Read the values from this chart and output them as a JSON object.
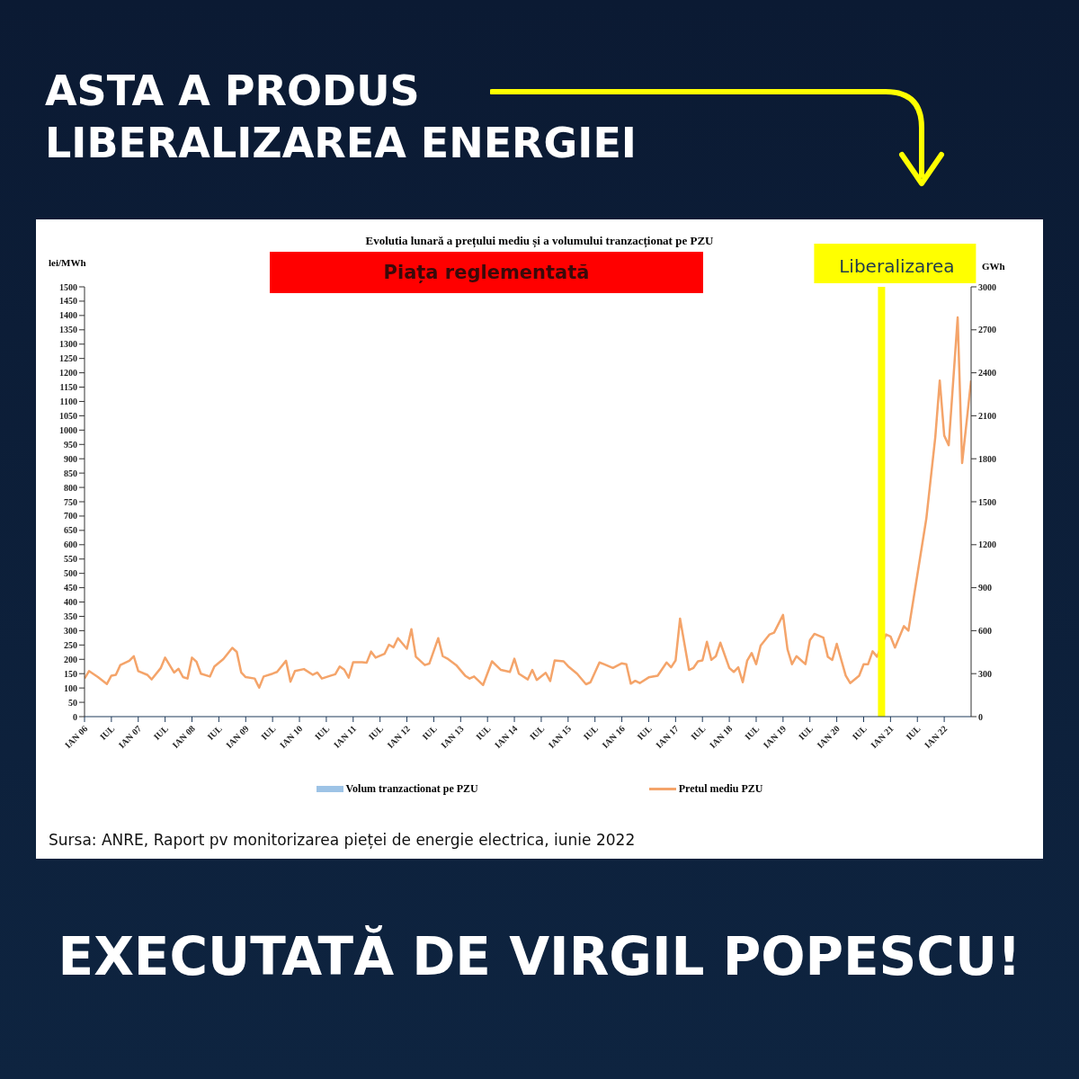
{
  "chart_data": {
    "type": "line",
    "title": "Evolutia lunară a prețului mediu și a volumului tranzacționat pe PZU",
    "ylabel": "lei/MWh",
    "y2label": "GWh",
    "annotations": [
      "ASTA A PRODUS LIBERALIZAREA ENERGIEI",
      "Piața reglementată",
      "Sursa: ANRE, Raport pv monitorizarea pieței de energie electrica, iunie 2022",
      "EXECUTATĂ DE VIRGIL POPESCU!"
    ],
    "x": [
      "2006-01",
      "2006-02",
      "2006-04",
      "2006-06",
      "2006-07",
      "2006-08",
      "2006-09",
      "2006-11",
      "2006-12",
      "2007-01",
      "2007-03",
      "2007-04",
      "2007-06",
      "2007-07",
      "2007-09",
      "2007-10",
      "2007-11",
      "2007-12",
      "2008-01",
      "2008-02",
      "2008-03",
      "2008-05",
      "2008-06",
      "2008-08",
      "2008-10",
      "2008-11",
      "2008-12",
      "2009-01",
      "2009-03",
      "2009-04",
      "2009-05",
      "2009-07",
      "2009-08",
      "2009-10",
      "2009-11",
      "2009-12",
      "2010-02",
      "2010-04",
      "2010-05",
      "2010-06",
      "2010-08",
      "2010-09",
      "2010-10",
      "2010-11",
      "2010-12",
      "2011-01",
      "2011-03",
      "2011-04",
      "2011-05",
      "2011-06",
      "2011-08",
      "2011-09",
      "2011-10",
      "2011-11",
      "2012-01",
      "2012-02",
      "2012-03",
      "2012-05",
      "2012-06",
      "2012-08",
      "2012-09",
      "2012-10",
      "2012-12",
      "2013-02",
      "2013-03",
      "2013-04",
      "2013-06",
      "2013-08",
      "2013-10",
      "2013-12",
      "2014-01",
      "2014-02",
      "2014-04",
      "2014-05",
      "2014-06",
      "2014-08",
      "2014-09",
      "2014-10",
      "2014-12",
      "2015-01",
      "2015-03",
      "2015-05",
      "2015-06",
      "2015-08",
      "2015-09",
      "2015-11",
      "2016-01",
      "2016-02",
      "2016-03",
      "2016-04",
      "2016-05",
      "2016-07",
      "2016-09",
      "2016-11",
      "2016-12",
      "2017-01",
      "2017-02",
      "2017-04",
      "2017-05",
      "2017-06",
      "2017-07",
      "2017-08",
      "2017-09",
      "2017-10",
      "2017-11",
      "2018-01",
      "2018-02",
      "2018-03",
      "2018-04",
      "2018-05",
      "2018-06",
      "2018-07",
      "2018-08",
      "2018-10",
      "2018-11",
      "2019-01",
      "2019-02",
      "2019-03",
      "2019-04",
      "2019-06",
      "2019-07",
      "2019-08",
      "2019-10",
      "2019-11",
      "2019-12",
      "2020-01",
      "2020-03",
      "2020-04",
      "2020-06",
      "2020-07",
      "2020-08",
      "2020-09",
      "2020-10",
      "2020-12",
      "2021-01",
      "2021-02",
      "2021-04",
      "2021-05",
      "2021-07",
      "2021-09",
      "2021-11",
      "2021-12",
      "2022-01",
      "2022-02",
      "2022-04",
      "2022-05",
      "2022-07"
    ],
    "series": [
      {
        "name": "Volum tranzactionat pe PZU",
        "type": "bar",
        "axis": "y2",
        "color": "#9dc3e6",
        "values": [
          null,
          null,
          null,
          null,
          null,
          null,
          null,
          null,
          null,
          null,
          null,
          null,
          null,
          null,
          null,
          null,
          null,
          null,
          null,
          null,
          null,
          null,
          null,
          null,
          null,
          null,
          null,
          null,
          null,
          null,
          null,
          null,
          null,
          null,
          null,
          null,
          null,
          null,
          null,
          null,
          null,
          null,
          null,
          null,
          null,
          null,
          null,
          null,
          null,
          null,
          null,
          null,
          null,
          null,
          null,
          null,
          null,
          null,
          null,
          null,
          null,
          null,
          null,
          null,
          null,
          null,
          null,
          null,
          null,
          null,
          null,
          null,
          null,
          null,
          null,
          null,
          null,
          null,
          null,
          null,
          null,
          null,
          null,
          null,
          null,
          null,
          null,
          null,
          null,
          null,
          null,
          null,
          null,
          null,
          null,
          null,
          null,
          null,
          null,
          null,
          null,
          null,
          null,
          null,
          null,
          null,
          null,
          null,
          null,
          null,
          null,
          null,
          null,
          null,
          null,
          null,
          null,
          null,
          null,
          null,
          null,
          null,
          null,
          null,
          null,
          null,
          null,
          null,
          null,
          null,
          null,
          null,
          null,
          null,
          null,
          null,
          null,
          null,
          null,
          null,
          null,
          null,
          null,
          null,
          null,
          null,
          null
        ]
      },
      {
        "name": "Pretul mediu PZU",
        "axis": "y",
        "color": "#f4a46a",
        "values": [
          133,
          159,
          138,
          114,
          143,
          146,
          180,
          195,
          211,
          159,
          146,
          130,
          169,
          206,
          154,
          167,
          138,
          133,
          206,
          192,
          150,
          140,
          175,
          201,
          240,
          226,
          154,
          138,
          133,
          101,
          140,
          150,
          156,
          195,
          122,
          159,
          166,
          146,
          154,
          133,
          143,
          148,
          175,
          164,
          136,
          190,
          190,
          188,
          227,
          206,
          219,
          251,
          242,
          274,
          237,
          305,
          209,
          180,
          185,
          274,
          211,
          203,
          180,
          143,
          133,
          140,
          110,
          193,
          163,
          156,
          202,
          150,
          130,
          163,
          128,
          153,
          124,
          196,
          193,
          176,
          150,
          113,
          120,
          189,
          183,
          170,
          186,
          183,
          115,
          125,
          117,
          137,
          143,
          189,
          172,
          196,
          342,
          163,
          170,
          193,
          196,
          261,
          198,
          211,
          258,
          170,
          156,
          172,
          120,
          196,
          222,
          183,
          248,
          287,
          293,
          355,
          235,
          183,
          211,
          183,
          267,
          289,
          276,
          209,
          198,
          254,
          143,
          117,
          143,
          183,
          183,
          228,
          209,
          287,
          280,
          241,
          316,
          300,
          495,
          691,
          975,
          1173,
          981,
          947,
          1393,
          885,
          1173
        ]
      }
    ],
    "xlim": [
      "2006-01",
      "2022-07"
    ],
    "xticks": [
      {
        "value": "2006-01",
        "label": "IAN 06"
      },
      {
        "value": "2006-07",
        "label": "IUL"
      },
      {
        "value": "2007-01",
        "label": "IAN 07"
      },
      {
        "value": "2007-07",
        "label": "IUL"
      },
      {
        "value": "2008-01",
        "label": "IAN 08"
      },
      {
        "value": "2008-07",
        "label": "IUL"
      },
      {
        "value": "2009-01",
        "label": "IAN 09"
      },
      {
        "value": "2009-07",
        "label": "IUL"
      },
      {
        "value": "2010-01",
        "label": "IAN 10"
      },
      {
        "value": "2010-07",
        "label": "IUL"
      },
      {
        "value": "2011-01",
        "label": "IAN 11"
      },
      {
        "value": "2011-07",
        "label": "IUL"
      },
      {
        "value": "2012-01",
        "label": "IAN 12"
      },
      {
        "value": "2012-07",
        "label": "IUL"
      },
      {
        "value": "2013-01",
        "label": "IAN 13"
      },
      {
        "value": "2013-07",
        "label": "IUL"
      },
      {
        "value": "2014-01",
        "label": "IAN 14"
      },
      {
        "value": "2014-07",
        "label": "IUL"
      },
      {
        "value": "2015-01",
        "label": "IAN 15"
      },
      {
        "value": "2015-07",
        "label": "IUL"
      },
      {
        "value": "2016-01",
        "label": "IAN 16"
      },
      {
        "value": "2016-07",
        "label": "IUL"
      },
      {
        "value": "2017-01",
        "label": "IAN 17"
      },
      {
        "value": "2017-07",
        "label": "IUL"
      },
      {
        "value": "2018-01",
        "label": "IAN 18"
      },
      {
        "value": "2018-07",
        "label": "IUL"
      },
      {
        "value": "2019-01",
        "label": "IAN 19"
      },
      {
        "value": "2019-07",
        "label": "IUL"
      },
      {
        "value": "2020-01",
        "label": "IAN 20"
      },
      {
        "value": "2020-07",
        "label": "IUL"
      },
      {
        "value": "2021-01",
        "label": "IAN 21"
      },
      {
        "value": "2021-07",
        "label": "IUL"
      },
      {
        "value": "2022-01",
        "label": "IAN 22"
      }
    ],
    "ylim": [
      0,
      1500
    ],
    "yticks": [
      0,
      50,
      100,
      150,
      200,
      250,
      300,
      350,
      400,
      450,
      500,
      550,
      600,
      650,
      700,
      750,
      800,
      850,
      900,
      950,
      1000,
      1050,
      1100,
      1150,
      1200,
      1250,
      1300,
      1350,
      1400,
      1450,
      1500
    ],
    "y2lim": [
      0,
      3000
    ],
    "y2ticks": [
      0,
      300,
      600,
      900,
      1200,
      1500,
      1800,
      2100,
      2400,
      2700,
      3000
    ],
    "ref_lines": [
      {
        "axis": "x",
        "value": "2020-11",
        "label": "Liberalizarea",
        "color": "#ffff00"
      }
    ],
    "legend": "bottom",
    "marker": "none",
    "line_style": "solid"
  }
}
